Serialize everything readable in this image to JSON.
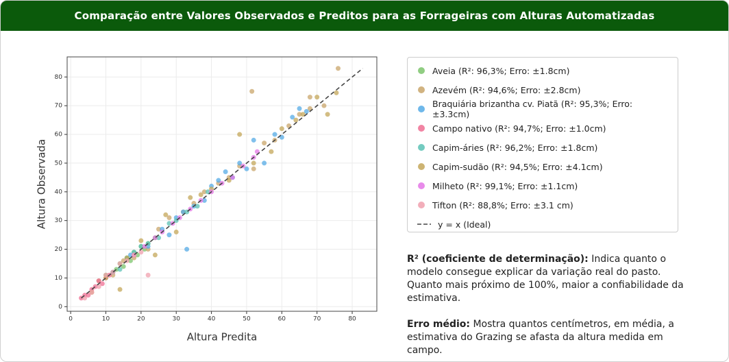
{
  "header": {
    "title": "Comparação entre Valores Observados e Preditos para as Forrageiras com Alturas Automatizadas"
  },
  "chart_data": {
    "type": "scatter",
    "x_label": "Altura Predita",
    "y_label": "Altura Observada",
    "xlim": [
      -1,
      87
    ],
    "ylim": [
      -1.6,
      87
    ],
    "xticks": [
      0,
      10,
      20,
      30,
      40,
      50,
      60,
      70,
      80
    ],
    "yticks": [
      0,
      10,
      20,
      30,
      40,
      50,
      60,
      70,
      80
    ],
    "grid": true,
    "legend": "outside-right",
    "series": [
      {
        "name": "Aveia (R²: 96,3%; Erro: ±1.8cm)",
        "color": "#7cc46c",
        "x": [
          10,
          12,
          13,
          14,
          15,
          16,
          17,
          18,
          19,
          20,
          21,
          22,
          24
        ],
        "y": [
          11,
          12,
          13,
          15,
          14,
          17,
          16,
          19,
          18,
          21,
          20,
          22,
          24
        ]
      },
      {
        "name": "Azevém (R²: 94,6%; Erro: ±2.8cm)",
        "color": "#c9a66b",
        "x": [
          8,
          12,
          15,
          18,
          22,
          25,
          28,
          32,
          35,
          38,
          42,
          45,
          48,
          52,
          55,
          58,
          62,
          65,
          68,
          72,
          76,
          51.5,
          68
        ],
        "y": [
          9,
          11,
          16,
          17,
          20,
          27,
          31,
          33,
          36,
          40,
          43,
          45,
          49,
          48,
          57,
          58,
          63,
          67,
          73,
          70,
          83,
          75,
          69
        ]
      },
      {
        "name": "Braquiária brizantha cv. Piatã (R²: 95,3%; Erro: ±3.3cm)",
        "color": "#56abe6",
        "x": [
          17,
          22,
          26,
          28,
          30,
          32,
          35,
          38,
          40,
          42,
          44,
          46,
          48,
          50,
          52,
          55,
          58,
          60,
          63,
          65,
          67,
          33
        ],
        "y": [
          18,
          21,
          27,
          25,
          31,
          33,
          35,
          37,
          42,
          44,
          47,
          45,
          50,
          48,
          58,
          50,
          60,
          59,
          66,
          69,
          68,
          20
        ]
      },
      {
        "name": "Campo nativo (R²: 94,7%; Erro: ±1.0cm)",
        "color": "#ef6f93",
        "x": [
          3,
          4,
          5,
          6,
          7,
          8,
          9,
          10,
          11,
          12
        ],
        "y": [
          3,
          4,
          4,
          6,
          7,
          9,
          8,
          10,
          11,
          12
        ]
      },
      {
        "name": "Capim-áries (R²: 96,2%; Erro: ±1.8cm)",
        "color": "#5cc2b5",
        "x": [
          12,
          14,
          16,
          18,
          20,
          22,
          25,
          28,
          30,
          33,
          36,
          39
        ],
        "y": [
          12,
          13,
          17,
          19,
          21,
          22,
          24,
          29,
          30,
          33,
          35,
          40
        ]
      },
      {
        "name": "Capim-sudão (R²: 94,5%; Erro: ±4.1cm)",
        "color": "#c4a75a",
        "x": [
          6,
          10,
          14,
          16,
          20,
          24,
          27,
          30,
          34,
          37,
          40,
          45,
          48,
          52,
          57,
          60,
          64,
          66,
          70,
          73,
          75.5
        ],
        "y": [
          5,
          10,
          6,
          17,
          23,
          18,
          32,
          26,
          38,
          39,
          41,
          44,
          60,
          50,
          54,
          62,
          65,
          67,
          73,
          67,
          74.5
        ]
      },
      {
        "name": "Milheto (R²: 99,1%; Erro: ±1.1cm)",
        "color": "#e477e6",
        "x": [
          18,
          21,
          24,
          26,
          29,
          31,
          34,
          37,
          40,
          43,
          46,
          49,
          52,
          53
        ],
        "y": [
          18,
          21,
          24,
          26,
          29,
          31,
          34,
          37,
          40,
          43,
          45,
          49,
          52,
          54
        ]
      },
      {
        "name": "Tifton (R²: 88,8%; Erro: ±3.1 cm)",
        "color": "#f0a0ae",
        "x": [
          4,
          6,
          8,
          10,
          12,
          14,
          16,
          18,
          20,
          22
        ],
        "y": [
          3,
          5,
          7,
          11,
          12,
          15,
          16,
          18,
          19,
          11
        ]
      }
    ],
    "reference_line": {
      "name": "y = x (Ideal)",
      "color": "#444444",
      "x": [
        3,
        83
      ],
      "y": [
        3,
        83
      ]
    }
  },
  "notes": [
    {
      "term": "R² (coeficiente de determinação):",
      "text": "Indica quanto o modelo consegue explicar da variação real do pasto. Quanto mais próximo de 100%, maior a confiabilidade da estimativa."
    },
    {
      "term": "Erro médio:",
      "text": "Mostra quantos centímetros, em média, a estimativa do Grazing se afasta da altura medida em campo."
    }
  ]
}
